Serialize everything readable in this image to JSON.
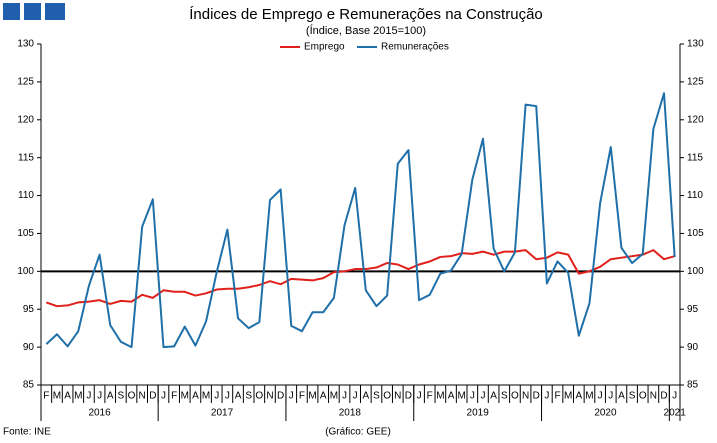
{
  "chart_data": {
    "type": "line",
    "title": "Índices de Emprego e Remunerações na Construção",
    "subtitle": "(Índice, Base 2015=100)",
    "category_groups": [
      {
        "label": "2016",
        "categories": [
          "F",
          "M",
          "A",
          "M",
          "J",
          "J",
          "A",
          "S",
          "O",
          "N",
          "D"
        ]
      },
      {
        "label": "2017",
        "categories": [
          "J",
          "F",
          "M",
          "A",
          "M",
          "J",
          "J",
          "A",
          "S",
          "O",
          "N",
          "D"
        ]
      },
      {
        "label": "2018",
        "categories": [
          "J",
          "F",
          "M",
          "A",
          "M",
          "J",
          "J",
          "A",
          "S",
          "O",
          "N",
          "D"
        ]
      },
      {
        "label": "2019",
        "categories": [
          "J",
          "F",
          "M",
          "A",
          "M",
          "J",
          "J",
          "A",
          "S",
          "O",
          "N",
          "D"
        ]
      },
      {
        "label": "2020",
        "categories": [
          "J",
          "F",
          "M",
          "A",
          "M",
          "J",
          "J",
          "A",
          "S",
          "O",
          "N",
          "D"
        ]
      },
      {
        "label": "2021",
        "categories": [
          "J"
        ]
      }
    ],
    "series": [
      {
        "name": "Emprego",
        "color": "#e0201b",
        "values": [
          95.9,
          95.4,
          95.5,
          95.9,
          96.0,
          96.2,
          95.7,
          96.1,
          96.0,
          96.9,
          96.5,
          97.5,
          97.3,
          97.3,
          96.8,
          97.1,
          97.6,
          97.7,
          97.7,
          97.9,
          98.2,
          98.7,
          98.3,
          99.0,
          98.9,
          98.8,
          99.1,
          99.9,
          100.0,
          100.3,
          100.3,
          100.5,
          101.1,
          100.9,
          100.3,
          100.9,
          101.3,
          101.9,
          102.0,
          102.4,
          102.3,
          102.6,
          102.2,
          102.6,
          102.6,
          102.8,
          101.6,
          101.8,
          102.5,
          102.2,
          99.7,
          100.0,
          100.6,
          101.6,
          101.8,
          102.0,
          102.2,
          102.8,
          101.6,
          102.0
        ]
      },
      {
        "name": "Remunerações",
        "color": "#1f6fa8",
        "values": [
          90.4,
          91.7,
          90.1,
          92.1,
          98.1,
          102.2,
          92.9,
          90.7,
          90.0,
          105.9,
          109.5,
          90.0,
          90.1,
          92.7,
          90.2,
          93.4,
          99.9,
          105.5,
          93.8,
          92.5,
          93.3,
          109.4,
          110.8,
          92.8,
          92.1,
          94.6,
          94.6,
          96.5,
          106.1,
          111.0,
          97.5,
          95.4,
          96.8,
          114.2,
          116.0,
          96.2,
          96.9,
          99.7,
          100.1,
          102.3,
          112.1,
          117.5,
          103.0,
          100.0,
          102.5,
          122.0,
          121.8,
          98.4,
          101.3,
          99.8,
          91.5,
          95.8,
          109.0,
          116.4,
          103.1,
          101.1,
          102.3,
          118.8,
          123.5,
          101.9
        ]
      }
    ],
    "ylim": [
      85,
      130
    ],
    "yticks": [
      85,
      90,
      95,
      100,
      105,
      110,
      115,
      120,
      125,
      130
    ],
    "y2lim": [
      85,
      130
    ],
    "y2ticks": [
      85,
      90,
      95,
      100,
      105,
      110,
      115,
      120,
      125,
      130
    ],
    "reference_line": 100,
    "grid": false,
    "legend": "top",
    "source": "Fonte: INE",
    "credit": "(Gráfico: GEE)"
  }
}
